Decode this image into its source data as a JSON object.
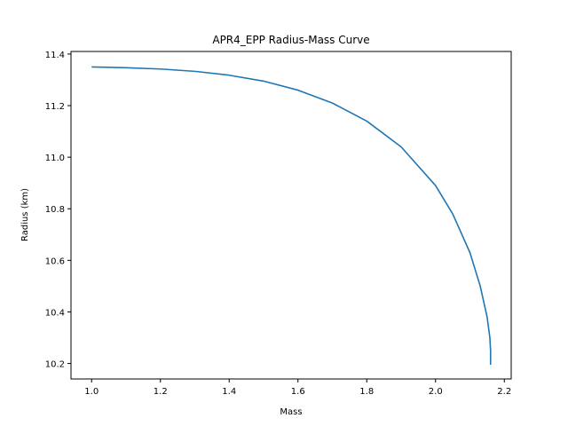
{
  "chart_data": {
    "type": "line",
    "title": "APR4_EPP Radius-Mass Curve",
    "xlabel": "Mass",
    "ylabel": "Radius (km)",
    "xlim": [
      0.94,
      2.22
    ],
    "ylim": [
      10.14,
      11.41
    ],
    "xticks": [
      1.0,
      1.2,
      1.4,
      1.6,
      1.8,
      2.0,
      2.2
    ],
    "xtick_labels": [
      "1.0",
      "1.2",
      "1.4",
      "1.6",
      "1.8",
      "2.0",
      "2.2"
    ],
    "yticks": [
      10.2,
      10.4,
      10.6,
      10.8,
      11.0,
      11.2,
      11.4
    ],
    "ytick_labels": [
      "10.2",
      "10.4",
      "10.6",
      "10.8",
      "11.0",
      "11.2",
      "11.4"
    ],
    "grid": false,
    "legend": "none",
    "series": [
      {
        "color": "#1f77b4",
        "x": [
          1.0,
          1.1,
          1.2,
          1.3,
          1.4,
          1.5,
          1.6,
          1.7,
          1.8,
          1.9,
          2.0,
          2.05,
          2.1,
          2.13,
          2.15,
          2.158,
          2.16,
          2.16
        ],
        "y": [
          11.35,
          11.347,
          11.342,
          11.333,
          11.318,
          11.295,
          11.26,
          11.21,
          11.14,
          11.04,
          10.89,
          10.78,
          10.63,
          10.5,
          10.38,
          10.3,
          10.25,
          10.195
        ]
      }
    ]
  }
}
